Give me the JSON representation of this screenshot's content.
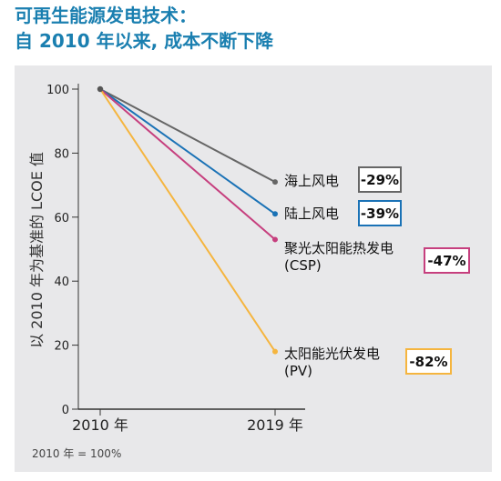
{
  "title_line1": "可再生能源发电技术：",
  "title_line2": "自  2010  年以来, 成本不断下降",
  "chart_data": {
    "type": "line",
    "x": [
      "2010 年",
      "2019 年"
    ],
    "ylabel": "以 2010 年为基准的 LCOE 值",
    "ylim": [
      0,
      100
    ],
    "yticks": [
      0,
      20,
      40,
      60,
      80,
      100
    ],
    "note": "2010 年 = 100%",
    "series": [
      {
        "name": "海上风电",
        "values": [
          100,
          71
        ],
        "change": "-29%",
        "color": "#666666"
      },
      {
        "name": "陆上风电",
        "values": [
          100,
          61
        ],
        "change": "-39%",
        "color": "#1a72b6"
      },
      {
        "name": "聚光太阳能热发电\n(CSP)",
        "values": [
          100,
          53
        ],
        "change": "-47%",
        "color": "#c63f7e"
      },
      {
        "name": "太阳能光伏发电\n(PV)",
        "values": [
          100,
          18
        ],
        "change": "-82%",
        "color": "#f5b53f"
      }
    ]
  }
}
